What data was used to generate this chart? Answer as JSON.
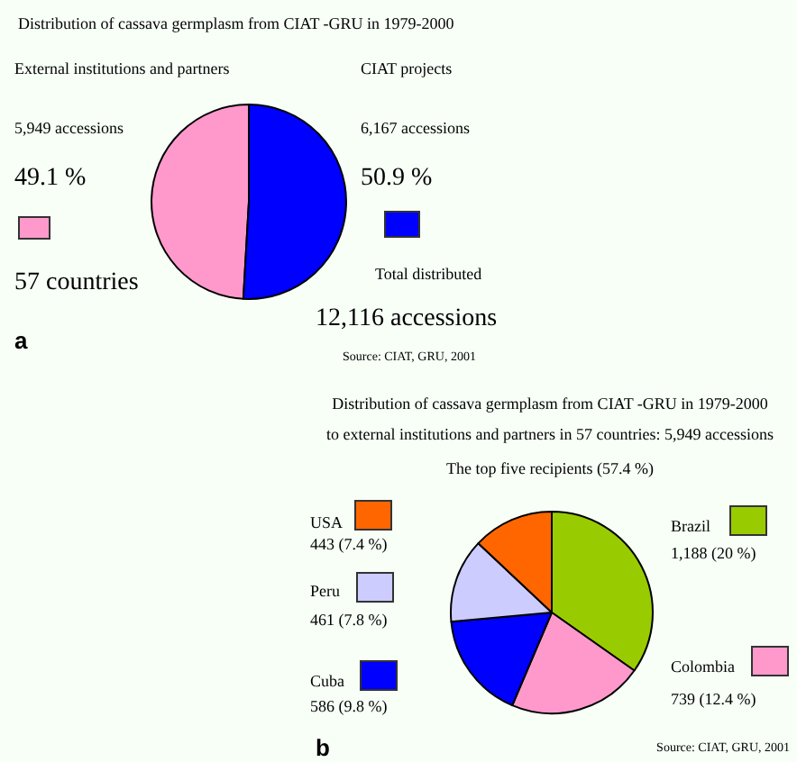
{
  "chart_data": [
    {
      "type": "pie",
      "title": "Distribution of cassava germplasm from CIAT -GRU in 1979-2000",
      "categories": [
        "External institutions and partners",
        "CIAT projects"
      ],
      "values": [
        5949,
        6167
      ],
      "colors": [
        "#ff99cc",
        "#0000ff"
      ],
      "value_labels": [
        "5,949 accessions",
        "6,167 accessions"
      ],
      "annotations": [
        "49.1 %",
        "50.9 %",
        "57 countries",
        "Total distributed",
        "12,116 accessions",
        "a",
        "Source: CIAT, GRU, 2001"
      ]
    },
    {
      "type": "pie",
      "title": "Distribution of cassava germplasm from CIAT -GRU in 1979-2000",
      "subtitle": "to external institutions and partners in 57 countries: 5,949 accessions",
      "categories": [
        "Brazil",
        "Colombia",
        "Cuba",
        "Peru",
        "USA"
      ],
      "values": [
        1188,
        739,
        586,
        461,
        443
      ],
      "colors": [
        "#99cc00",
        "#ff99cc",
        "#0000ff",
        "#ccccff",
        "#ff6600"
      ],
      "value_labels": [
        "1,188 (20 %)",
        "739 (12.4 %)",
        "586 (9.8 %)",
        "461 (7.8 %)",
        "443 (7.4 %)"
      ],
      "legend": "left",
      "annotations": [
        "The top five recipients (57.4 %)",
        "b",
        "Source: CIAT, GRU, 2001"
      ]
    }
  ]
}
